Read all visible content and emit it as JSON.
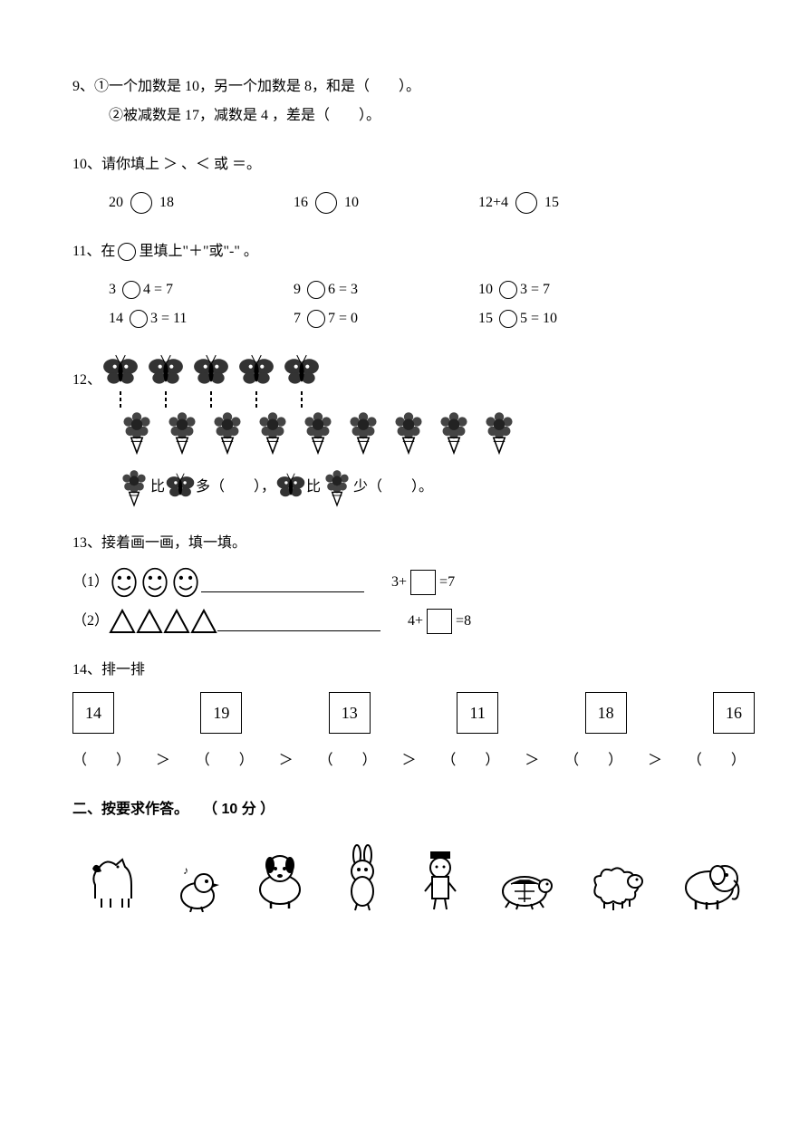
{
  "q9": {
    "prefix": "9、",
    "line1": "①一个加数是 10，另一个加数是 8，和是（　　）。",
    "line2": "②被减数是 17，减数是 4 ，差是（　　）。"
  },
  "q10": {
    "prefix": "10、",
    "text": "请你填上 ＞ 、＜  或 ＝。",
    "items": [
      {
        "a": "20",
        "b": "18"
      },
      {
        "a": "16",
        "b": "10"
      },
      {
        "a": "12+4",
        "b": "15"
      }
    ]
  },
  "q11": {
    "prefix": "11、",
    "text_a": "在",
    "text_b": "里填上\"＋\"或\"-\" 。",
    "row1": [
      {
        "a": "3",
        "b": "4 = 7"
      },
      {
        "a": "9",
        "b": "6 = 3"
      },
      {
        "a": "10",
        "b": "3 = 7"
      }
    ],
    "row2": [
      {
        "a": "14",
        "b": "3 = 11"
      },
      {
        "a": "7",
        "b": "7 = 0"
      },
      {
        "a": "15",
        "b": "5 = 10"
      }
    ]
  },
  "q12": {
    "prefix": "12、",
    "butterflies_row1": 5,
    "flowers_row1": 9,
    "compare_a": "比",
    "compare_b": "多（　　），",
    "compare_c": "比",
    "compare_d": "少（　　）。"
  },
  "q13": {
    "prefix": "13、",
    "text": "接着画一画，填一填。",
    "p1_label": "（1）",
    "p1_faces": 3,
    "p1_eq_a": "3+",
    "p1_eq_b": "=7",
    "p2_label": "（2）",
    "p2_triangles": 4,
    "p2_eq_a": "4+",
    "p2_eq_b": "=8"
  },
  "q14": {
    "prefix": "14、",
    "text": "排一排",
    "nums": [
      "14",
      "19",
      "13",
      "11",
      "18",
      "16"
    ],
    "gt": "＞"
  },
  "section2": {
    "title": "二、按要求作答。",
    "points": "（ 10 分 ）"
  },
  "animals": {
    "list": [
      "horse",
      "bird",
      "dog",
      "rabbit",
      "boy",
      "turtle",
      "sheep",
      "elephant"
    ]
  }
}
